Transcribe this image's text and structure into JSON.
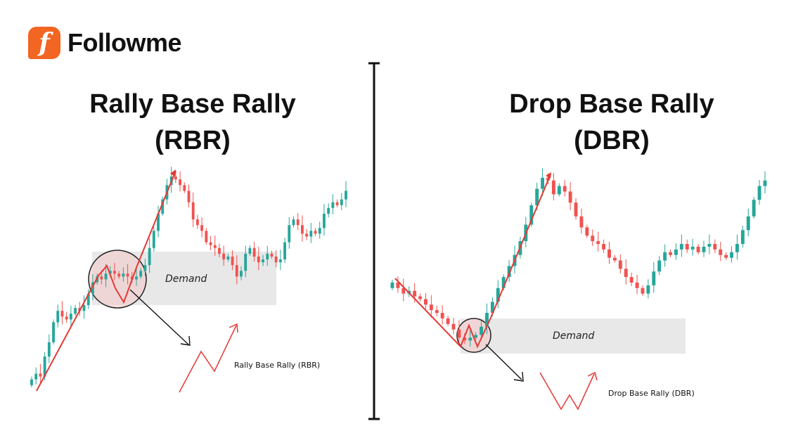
{
  "brand": {
    "name": "Followme",
    "mark": "f",
    "color": "#f26522"
  },
  "colors": {
    "bull": "#26a69a",
    "bear": "#ef5350",
    "pattern_line": "#e53935",
    "zone": "#e8e8e8",
    "circle_fill": "#f3c9c9"
  },
  "panels": [
    {
      "id": "rbr",
      "title_line1": "Rally Base Rally",
      "title_line2": "(RBR)",
      "zone_label": "Demand",
      "shape_label": "Rally Base Rally (RBR)"
    },
    {
      "id": "dbr",
      "title_line1": "Drop Base Rally",
      "title_line2": "(DBR)",
      "zone_label": "Demand",
      "shape_label": "Drop Base Rally (DBR)"
    }
  ],
  "chart_data": [
    {
      "type": "candlestick",
      "title": "Rally Base Rally (RBR)",
      "annotations": [
        "Demand",
        "Rally Base Rally (RBR)"
      ],
      "closes": [
        50,
        52,
        51,
        58,
        63,
        70,
        74,
        72,
        71,
        73,
        75,
        74,
        76,
        80,
        84,
        86,
        85,
        87,
        88,
        87,
        86,
        87,
        86,
        85,
        86,
        88,
        90,
        96,
        102,
        108,
        113,
        118,
        121,
        120,
        118,
        116,
        112,
        106,
        104,
        102,
        98,
        97,
        96,
        94,
        92,
        93,
        90,
        86,
        88,
        94,
        96,
        93,
        91,
        92,
        94,
        93,
        91,
        92,
        98,
        104,
        106,
        104,
        101,
        100,
        102,
        101,
        103,
        108,
        110,
        112,
        111,
        113,
        116
      ]
    },
    {
      "type": "candlestick",
      "title": "Drop Base Rally (DBR)",
      "annotations": [
        "Demand",
        "Drop Base Rally (DBR)"
      ],
      "closes": [
        86,
        84,
        82,
        83,
        81,
        80,
        78,
        76,
        75,
        73,
        71,
        69,
        66,
        65,
        66,
        67,
        70,
        75,
        79,
        84,
        88,
        92,
        96,
        101,
        107,
        114,
        120,
        124,
        123,
        118,
        121,
        119,
        115,
        110,
        106,
        103,
        101,
        100,
        98,
        95,
        94,
        91,
        88,
        86,
        84,
        82,
        85,
        90,
        94,
        97,
        96,
        98,
        100,
        98,
        99,
        97,
        99,
        100,
        98,
        96,
        95,
        97,
        100,
        105,
        110,
        116,
        121,
        123
      ]
    }
  ]
}
